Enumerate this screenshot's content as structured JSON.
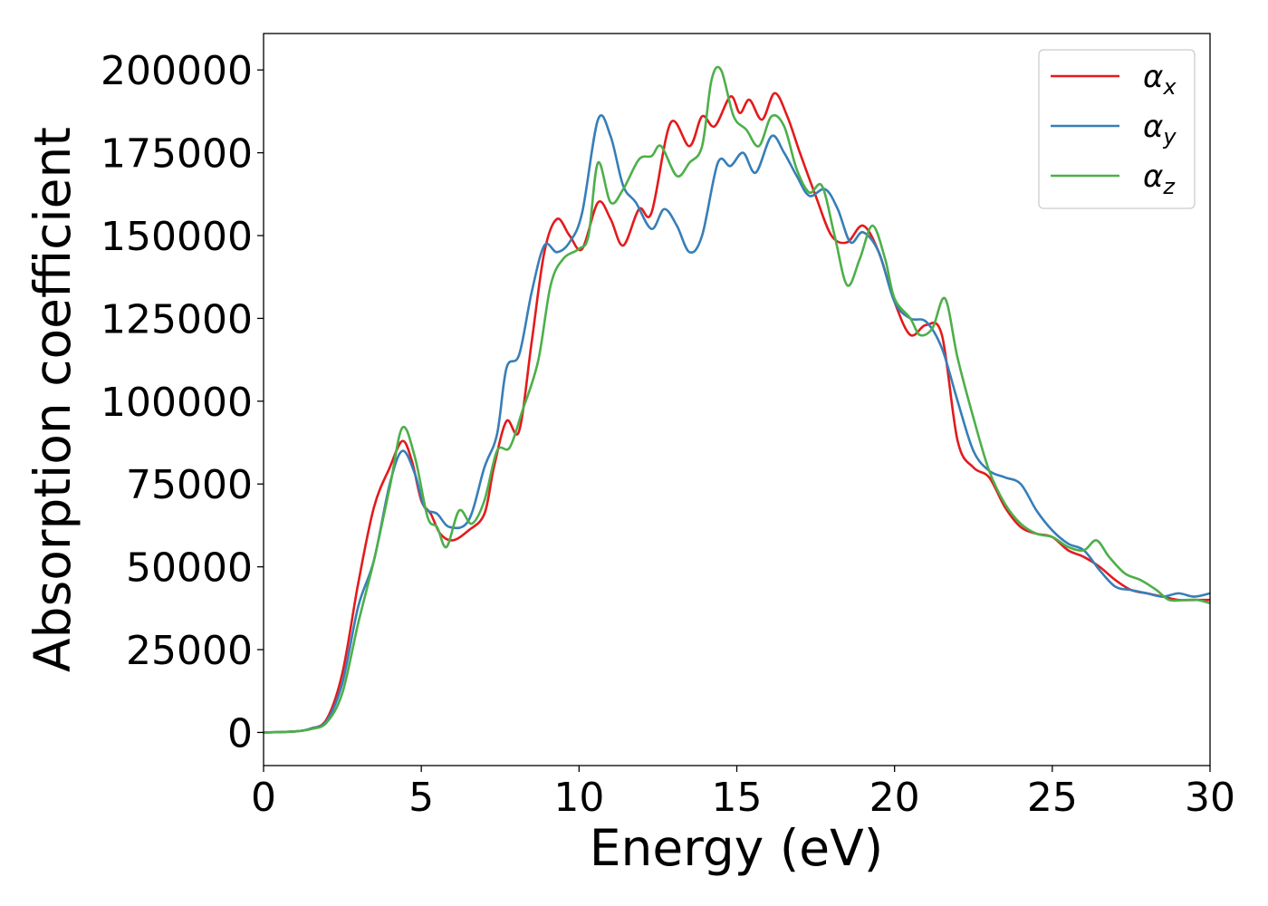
{
  "chart_data": {
    "type": "line",
    "xlabel": "Energy (eV)",
    "ylabel": "Absorption coefficient",
    "xlim": [
      0,
      30
    ],
    "ylim": [
      -10000,
      211000
    ],
    "xticks": [
      0,
      5,
      10,
      15,
      20,
      25,
      30
    ],
    "xtick_labels": [
      "0",
      "5",
      "10",
      "15",
      "20",
      "25",
      "30"
    ],
    "yticks": [
      0,
      25000,
      50000,
      75000,
      100000,
      125000,
      150000,
      175000,
      200000
    ],
    "ytick_labels": [
      "0",
      "25000",
      "50000",
      "75000",
      "100000",
      "125000",
      "150000",
      "175000",
      "200000"
    ],
    "grid": false,
    "legend_position": "top-right",
    "series": [
      {
        "name": "αx",
        "symbol": "α",
        "subscript": "x",
        "color": "#e41a1c",
        "points": [
          [
            0,
            0
          ],
          [
            1,
            300
          ],
          [
            1.5,
            1200
          ],
          [
            2,
            4000
          ],
          [
            2.5,
            18000
          ],
          [
            3,
            45000
          ],
          [
            3.5,
            68000
          ],
          [
            4,
            80000
          ],
          [
            4.4,
            88000
          ],
          [
            4.7,
            82000
          ],
          [
            5,
            70000
          ],
          [
            5.3,
            66000
          ],
          [
            5.6,
            60000
          ],
          [
            6,
            58000
          ],
          [
            6.5,
            61000
          ],
          [
            7,
            66000
          ],
          [
            7.3,
            80000
          ],
          [
            7.7,
            94000
          ],
          [
            8.1,
            91000
          ],
          [
            8.5,
            118000
          ],
          [
            8.9,
            145000
          ],
          [
            9.3,
            155000
          ],
          [
            9.7,
            150000
          ],
          [
            10.1,
            146000
          ],
          [
            10.6,
            160000
          ],
          [
            11,
            155000
          ],
          [
            11.4,
            147000
          ],
          [
            11.9,
            158000
          ],
          [
            12.3,
            157000
          ],
          [
            12.9,
            184000
          ],
          [
            13.5,
            177000
          ],
          [
            13.9,
            186000
          ],
          [
            14.3,
            183000
          ],
          [
            14.8,
            192000
          ],
          [
            15.1,
            187000
          ],
          [
            15.4,
            191000
          ],
          [
            15.8,
            185000
          ],
          [
            16.2,
            193000
          ],
          [
            16.6,
            186000
          ],
          [
            17,
            175000
          ],
          [
            17.5,
            162000
          ],
          [
            18,
            150000
          ],
          [
            18.5,
            148000
          ],
          [
            19,
            153000
          ],
          [
            19.5,
            145000
          ],
          [
            20,
            130000
          ],
          [
            20.5,
            120000
          ],
          [
            21,
            123000
          ],
          [
            21.5,
            120000
          ],
          [
            22,
            88000
          ],
          [
            22.5,
            80000
          ],
          [
            23,
            77000
          ],
          [
            23.5,
            68000
          ],
          [
            24,
            62000
          ],
          [
            24.5,
            60000
          ],
          [
            25,
            59000
          ],
          [
            25.5,
            55000
          ],
          [
            26,
            53000
          ],
          [
            26.5,
            50000
          ],
          [
            27,
            46000
          ],
          [
            27.5,
            43000
          ],
          [
            28,
            42000
          ],
          [
            28.5,
            41000
          ],
          [
            29,
            40000
          ],
          [
            29.5,
            40000
          ],
          [
            30,
            40000
          ]
        ]
      },
      {
        "name": "αy",
        "symbol": "α",
        "subscript": "y",
        "color": "#377eb8",
        "points": [
          [
            0,
            0
          ],
          [
            1,
            300
          ],
          [
            1.5,
            1200
          ],
          [
            2,
            3500
          ],
          [
            2.5,
            15000
          ],
          [
            3,
            38000
          ],
          [
            3.5,
            52000
          ],
          [
            4,
            75000
          ],
          [
            4.4,
            85000
          ],
          [
            4.8,
            78000
          ],
          [
            5.1,
            68000
          ],
          [
            5.5,
            66000
          ],
          [
            5.9,
            62000
          ],
          [
            6.5,
            64000
          ],
          [
            7,
            80000
          ],
          [
            7.4,
            90000
          ],
          [
            7.7,
            110000
          ],
          [
            8.1,
            114000
          ],
          [
            8.5,
            133000
          ],
          [
            8.9,
            147000
          ],
          [
            9.3,
            145000
          ],
          [
            9.7,
            148000
          ],
          [
            10.1,
            157000
          ],
          [
            10.6,
            185000
          ],
          [
            11,
            180000
          ],
          [
            11.4,
            165000
          ],
          [
            11.8,
            160000
          ],
          [
            12.3,
            152000
          ],
          [
            12.7,
            158000
          ],
          [
            13.1,
            153000
          ],
          [
            13.5,
            145000
          ],
          [
            13.9,
            150000
          ],
          [
            14.4,
            172000
          ],
          [
            14.8,
            171000
          ],
          [
            15.2,
            175000
          ],
          [
            15.6,
            169000
          ],
          [
            16.1,
            180000
          ],
          [
            16.5,
            175000
          ],
          [
            16.9,
            168000
          ],
          [
            17.3,
            162000
          ],
          [
            17.8,
            164000
          ],
          [
            18.2,
            158000
          ],
          [
            18.6,
            148000
          ],
          [
            19,
            151000
          ],
          [
            19.5,
            145000
          ],
          [
            20,
            130000
          ],
          [
            20.5,
            125000
          ],
          [
            21,
            124000
          ],
          [
            21.5,
            116000
          ],
          [
            22,
            100000
          ],
          [
            22.5,
            85000
          ],
          [
            23,
            79000
          ],
          [
            23.5,
            77000
          ],
          [
            24,
            75000
          ],
          [
            24.5,
            67000
          ],
          [
            25,
            61000
          ],
          [
            25.5,
            57000
          ],
          [
            26,
            55000
          ],
          [
            26.5,
            49000
          ],
          [
            27,
            44000
          ],
          [
            27.5,
            43000
          ],
          [
            28,
            42000
          ],
          [
            28.5,
            41000
          ],
          [
            29,
            42000
          ],
          [
            29.5,
            41000
          ],
          [
            30,
            42000
          ]
        ]
      },
      {
        "name": "αz",
        "symbol": "α",
        "subscript": "z",
        "color": "#4daf4a",
        "points": [
          [
            0,
            0
          ],
          [
            1,
            300
          ],
          [
            1.5,
            1000
          ],
          [
            2,
            3000
          ],
          [
            2.5,
            12000
          ],
          [
            3,
            33000
          ],
          [
            3.5,
            52000
          ],
          [
            4,
            74000
          ],
          [
            4.4,
            92000
          ],
          [
            4.8,
            83000
          ],
          [
            5.2,
            65000
          ],
          [
            5.5,
            62000
          ],
          [
            5.8,
            56000
          ],
          [
            6.2,
            67000
          ],
          [
            6.6,
            63000
          ],
          [
            7,
            70000
          ],
          [
            7.4,
            85000
          ],
          [
            7.8,
            86000
          ],
          [
            8.2,
            97000
          ],
          [
            8.7,
            112000
          ],
          [
            9.1,
            135000
          ],
          [
            9.5,
            143000
          ],
          [
            10,
            146000
          ],
          [
            10.3,
            150000
          ],
          [
            10.6,
            172000
          ],
          [
            11,
            160000
          ],
          [
            11.4,
            164000
          ],
          [
            11.9,
            173000
          ],
          [
            12.3,
            174000
          ],
          [
            12.6,
            177000
          ],
          [
            13.1,
            168000
          ],
          [
            13.5,
            172000
          ],
          [
            13.9,
            177000
          ],
          [
            14.2,
            197000
          ],
          [
            14.5,
            200000
          ],
          [
            14.9,
            186000
          ],
          [
            15.3,
            182000
          ],
          [
            15.7,
            177000
          ],
          [
            16.1,
            186000
          ],
          [
            16.5,
            183000
          ],
          [
            16.9,
            170000
          ],
          [
            17.3,
            163000
          ],
          [
            17.7,
            165000
          ],
          [
            18.1,
            150000
          ],
          [
            18.5,
            135000
          ],
          [
            18.9,
            143000
          ],
          [
            19.3,
            153000
          ],
          [
            19.7,
            143000
          ],
          [
            20,
            131000
          ],
          [
            20.5,
            125000
          ],
          [
            20.8,
            120000
          ],
          [
            21.2,
            122000
          ],
          [
            21.6,
            131000
          ],
          [
            22,
            113000
          ],
          [
            22.5,
            95000
          ],
          [
            23,
            79000
          ],
          [
            23.5,
            69000
          ],
          [
            24,
            63000
          ],
          [
            24.5,
            60000
          ],
          [
            25,
            59000
          ],
          [
            25.5,
            56000
          ],
          [
            26,
            55000
          ],
          [
            26.4,
            58000
          ],
          [
            26.8,
            53000
          ],
          [
            27.3,
            48000
          ],
          [
            27.8,
            46000
          ],
          [
            28.3,
            43000
          ],
          [
            28.7,
            40000
          ],
          [
            29.2,
            40000
          ],
          [
            29.6,
            40000
          ],
          [
            30,
            39000
          ]
        ]
      }
    ]
  }
}
